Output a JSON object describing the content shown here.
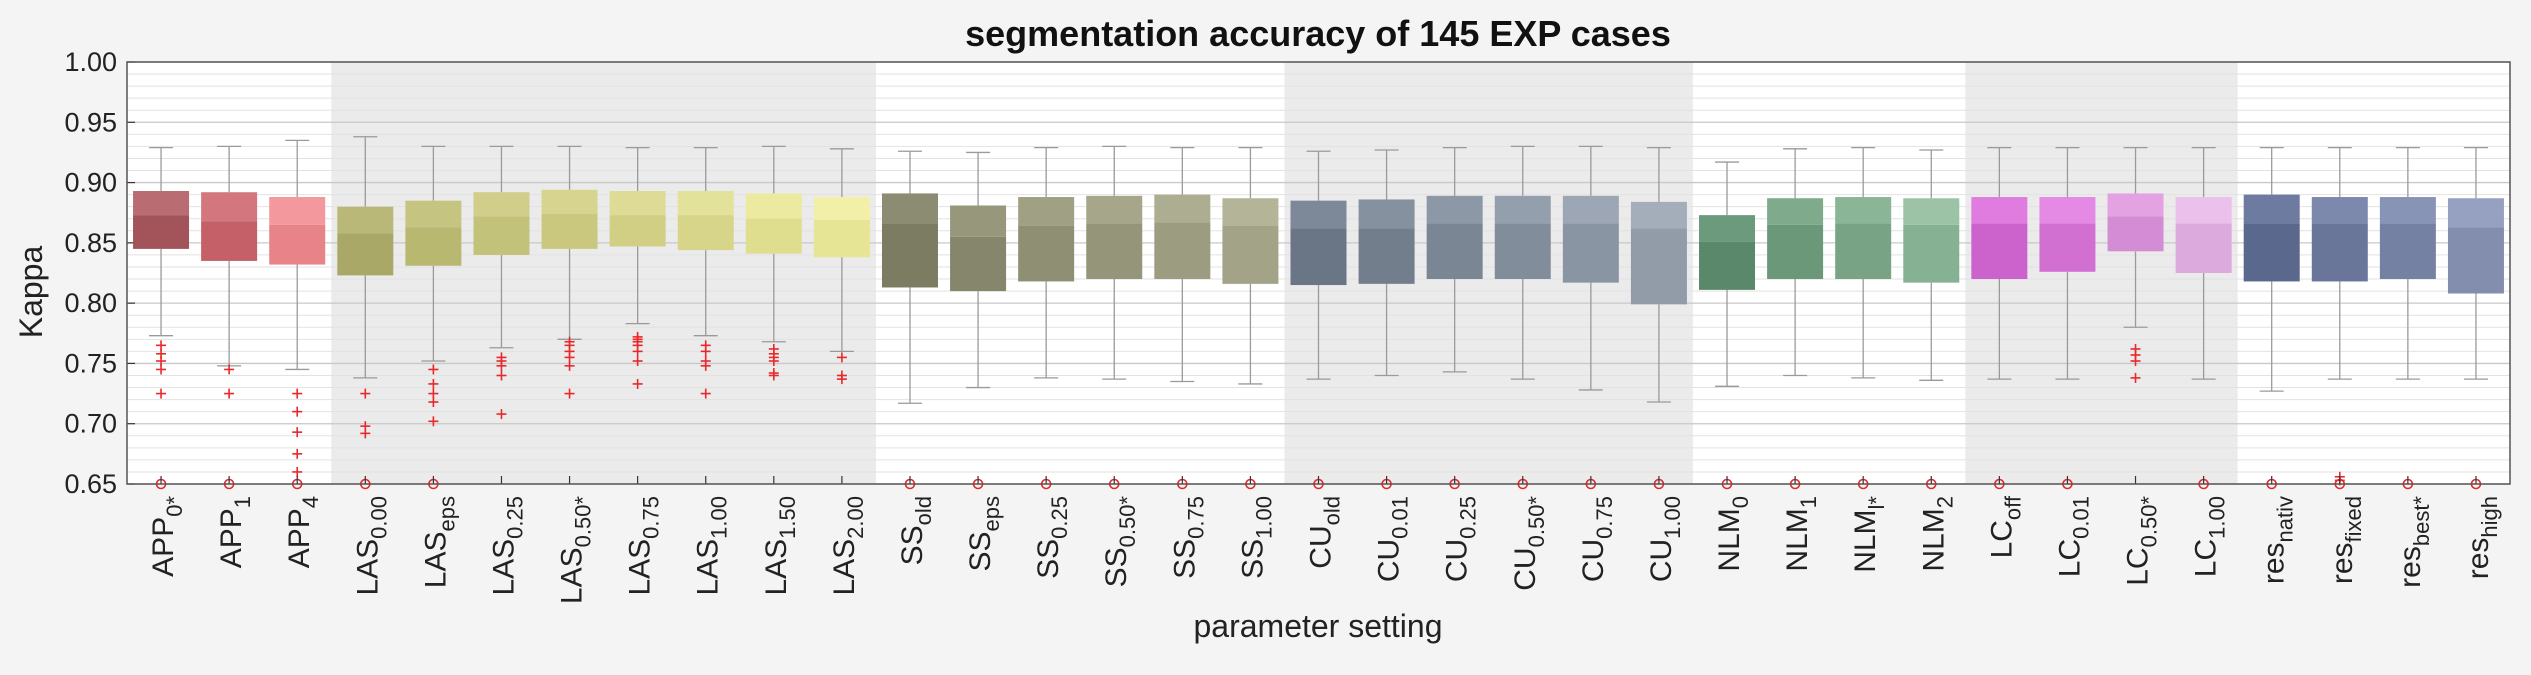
{
  "chart_data": {
    "type": "box",
    "title": "segmentation accuracy of 145 EXP cases",
    "xlabel": "parameter setting",
    "ylabel": "Kappa",
    "ylim": [
      0.65,
      1.0
    ],
    "yticks": [
      "0.65",
      "0.70",
      "0.75",
      "0.80",
      "0.85",
      "0.90",
      "0.95",
      "1.00"
    ],
    "grid": true,
    "outlier_color": "#e8282b",
    "group_shading": [
      {
        "from": 3,
        "to": 10,
        "color": "#ebebeb"
      },
      {
        "from": 17,
        "to": 22,
        "color": "#ebebeb"
      },
      {
        "from": 27,
        "to": 30,
        "color": "#ebebeb"
      }
    ],
    "categories": [
      {
        "base": "APP",
        "sub": "0*",
        "q1": 0.845,
        "median": 0.873,
        "q3": 0.893,
        "whisker_low": 0.773,
        "whisker_high": 0.929,
        "color_upper": "#b96c72",
        "color_lower": "#a3535a",
        "outliers": [
          0.725,
          0.745,
          0.752,
          0.758,
          0.765
        ],
        "marker_at_axis": true
      },
      {
        "base": "APP",
        "sub": "1",
        "q1": 0.835,
        "median": 0.868,
        "q3": 0.892,
        "whisker_low": 0.748,
        "whisker_high": 0.93,
        "color_upper": "#d4767e",
        "color_lower": "#c66068",
        "outliers": [
          0.725,
          0.745
        ],
        "marker_at_axis": true
      },
      {
        "base": "APP",
        "sub": "4",
        "q1": 0.832,
        "median": 0.865,
        "q3": 0.888,
        "whisker_low": 0.745,
        "whisker_high": 0.935,
        "color_upper": "#f3999d",
        "color_lower": "#e9838a",
        "outliers": [
          0.66,
          0.675,
          0.693,
          0.71,
          0.725
        ],
        "marker_at_axis": true
      },
      {
        "base": "LAS",
        "sub": "0.00",
        "q1": 0.823,
        "median": 0.858,
        "q3": 0.88,
        "whisker_low": 0.738,
        "whisker_high": 0.938,
        "color_upper": "#b9b878",
        "color_lower": "#a9a866",
        "outliers": [
          0.692,
          0.698,
          0.725
        ],
        "marker_at_axis": true
      },
      {
        "base": "LAS",
        "sub": "eps",
        "q1": 0.831,
        "median": 0.863,
        "q3": 0.885,
        "whisker_low": 0.752,
        "whisker_high": 0.93,
        "color_upper": "#c5c480",
        "color_lower": "#b8b870",
        "outliers": [
          0.702,
          0.718,
          0.725,
          0.733,
          0.745
        ],
        "marker_at_axis": true
      },
      {
        "base": "LAS",
        "sub": "0.25",
        "q1": 0.84,
        "median": 0.872,
        "q3": 0.892,
        "whisker_low": 0.763,
        "whisker_high": 0.93,
        "color_upper": "#d0ce8a",
        "color_lower": "#c3c27a",
        "outliers": [
          0.708,
          0.74,
          0.748,
          0.752,
          0.755
        ],
        "marker_at_axis": false
      },
      {
        "base": "LAS",
        "sub": "0.50*",
        "q1": 0.845,
        "median": 0.874,
        "q3": 0.894,
        "whisker_low": 0.77,
        "whisker_high": 0.93,
        "color_upper": "#d6d48f",
        "color_lower": "#c9c87e",
        "outliers": [
          0.725,
          0.748,
          0.755,
          0.76,
          0.765,
          0.768
        ],
        "marker_at_axis": false
      },
      {
        "base": "LAS",
        "sub": "0.75",
        "q1": 0.847,
        "median": 0.873,
        "q3": 0.893,
        "whisker_low": 0.783,
        "whisker_high": 0.929,
        "color_upper": "#dddb95",
        "color_lower": "#d0cf84",
        "outliers": [
          0.733,
          0.752,
          0.76,
          0.765,
          0.768,
          0.77,
          0.772
        ],
        "marker_at_axis": false
      },
      {
        "base": "LAS",
        "sub": "1.00",
        "q1": 0.844,
        "median": 0.873,
        "q3": 0.893,
        "whisker_low": 0.773,
        "whisker_high": 0.929,
        "color_upper": "#e3e29a",
        "color_lower": "#d6d589",
        "outliers": [
          0.725,
          0.748,
          0.752,
          0.76,
          0.765
        ],
        "marker_at_axis": false
      },
      {
        "base": "LAS",
        "sub": "1.50",
        "q1": 0.841,
        "median": 0.87,
        "q3": 0.891,
        "whisker_low": 0.768,
        "whisker_high": 0.93,
        "color_upper": "#ebeaa0",
        "color_lower": "#dfde8f",
        "outliers": [
          0.74,
          0.742,
          0.752,
          0.755,
          0.758,
          0.762
        ],
        "marker_at_axis": false
      },
      {
        "base": "LAS",
        "sub": "2.00",
        "q1": 0.838,
        "median": 0.869,
        "q3": 0.888,
        "whisker_low": 0.76,
        "whisker_high": 0.928,
        "color_upper": "#f2f0a8",
        "color_lower": "#e6e595",
        "outliers": [
          0.737,
          0.74,
          0.755
        ],
        "marker_at_axis": false
      },
      {
        "base": "SS",
        "sub": "old",
        "q1": 0.813,
        "median": 0.866,
        "q3": 0.891,
        "whisker_low": 0.717,
        "whisker_high": 0.926,
        "color_upper": "#8c8c72",
        "color_lower": "#7c7c62",
        "outliers": [],
        "marker_at_axis": true
      },
      {
        "base": "SS",
        "sub": "eps",
        "q1": 0.81,
        "median": 0.855,
        "q3": 0.881,
        "whisker_low": 0.73,
        "whisker_high": 0.925,
        "color_upper": "#97977c",
        "color_lower": "#86866c",
        "outliers": [],
        "marker_at_axis": true
      },
      {
        "base": "SS",
        "sub": "0.25",
        "q1": 0.818,
        "median": 0.864,
        "q3": 0.888,
        "whisker_low": 0.738,
        "whisker_high": 0.929,
        "color_upper": "#a0a084",
        "color_lower": "#8f8f74",
        "outliers": [],
        "marker_at_axis": true
      },
      {
        "base": "SS",
        "sub": "0.50*",
        "q1": 0.82,
        "median": 0.866,
        "q3": 0.889,
        "whisker_low": 0.737,
        "whisker_high": 0.93,
        "color_upper": "#a6a68a",
        "color_lower": "#95957a",
        "outliers": [],
        "marker_at_axis": true
      },
      {
        "base": "SS",
        "sub": "0.75",
        "q1": 0.82,
        "median": 0.867,
        "q3": 0.89,
        "whisker_low": 0.735,
        "whisker_high": 0.929,
        "color_upper": "#adad91",
        "color_lower": "#9c9c80",
        "outliers": [],
        "marker_at_axis": true
      },
      {
        "base": "SS",
        "sub": "1.00",
        "q1": 0.816,
        "median": 0.864,
        "q3": 0.887,
        "whisker_low": 0.733,
        "whisker_high": 0.929,
        "color_upper": "#b4b498",
        "color_lower": "#a3a387",
        "outliers": [],
        "marker_at_axis": true
      },
      {
        "base": "CU",
        "sub": "old",
        "q1": 0.815,
        "median": 0.862,
        "q3": 0.885,
        "whisker_low": 0.737,
        "whisker_high": 0.926,
        "color_upper": "#7d8898",
        "color_lower": "#6a7686",
        "outliers": [],
        "marker_at_axis": true
      },
      {
        "base": "CU",
        "sub": "0.01",
        "q1": 0.816,
        "median": 0.862,
        "q3": 0.886,
        "whisker_low": 0.74,
        "whisker_high": 0.927,
        "color_upper": "#86919f",
        "color_lower": "#737e8d",
        "outliers": [],
        "marker_at_axis": true
      },
      {
        "base": "CU",
        "sub": "0.25",
        "q1": 0.82,
        "median": 0.866,
        "q3": 0.889,
        "whisker_low": 0.743,
        "whisker_high": 0.929,
        "color_upper": "#8d98a7",
        "color_lower": "#7b8695",
        "outliers": [],
        "marker_at_axis": true
      },
      {
        "base": "CU",
        "sub": "0.50*",
        "q1": 0.82,
        "median": 0.866,
        "q3": 0.889,
        "whisker_low": 0.737,
        "whisker_high": 0.93,
        "color_upper": "#949fae",
        "color_lower": "#828d9c",
        "outliers": [],
        "marker_at_axis": true
      },
      {
        "base": "CU",
        "sub": "0.75",
        "q1": 0.817,
        "median": 0.866,
        "q3": 0.889,
        "whisker_low": 0.728,
        "whisker_high": 0.93,
        "color_upper": "#9ca6b4",
        "color_lower": "#8a95a3",
        "outliers": [],
        "marker_at_axis": true
      },
      {
        "base": "CU",
        "sub": "1.00",
        "q1": 0.799,
        "median": 0.862,
        "q3": 0.884,
        "whisker_low": 0.718,
        "whisker_high": 0.929,
        "color_upper": "#a4aebb",
        "color_lower": "#929ca9",
        "outliers": [],
        "marker_at_axis": true
      },
      {
        "base": "NLM",
        "sub": "0",
        "q1": 0.811,
        "median": 0.851,
        "q3": 0.873,
        "whisker_low": 0.731,
        "whisker_high": 0.917,
        "color_upper": "#6c9a7c",
        "color_lower": "#5a886a",
        "outliers": [],
        "marker_at_axis": true
      },
      {
        "base": "NLM",
        "sub": "1",
        "q1": 0.82,
        "median": 0.865,
        "q3": 0.887,
        "whisker_low": 0.74,
        "whisker_high": 0.928,
        "color_upper": "#7faa8c",
        "color_lower": "#6c987a",
        "outliers": [],
        "marker_at_axis": true
      },
      {
        "base": "NLM",
        "sub": "l*",
        "q1": 0.82,
        "median": 0.866,
        "q3": 0.888,
        "whisker_low": 0.738,
        "whisker_high": 0.929,
        "color_upper": "#8bb597",
        "color_lower": "#78a385",
        "outliers": [],
        "marker_at_axis": true
      },
      {
        "base": "NLM",
        "sub": "2",
        "q1": 0.817,
        "median": 0.865,
        "q3": 0.887,
        "whisker_low": 0.736,
        "whisker_high": 0.927,
        "color_upper": "#9cc3a6",
        "color_lower": "#87b193",
        "outliers": [],
        "marker_at_axis": true
      },
      {
        "base": "LC",
        "sub": "off",
        "q1": 0.82,
        "median": 0.866,
        "q3": 0.888,
        "whisker_low": 0.737,
        "whisker_high": 0.929,
        "color_upper": "#e07ce0",
        "color_lower": "#cc62cc",
        "outliers": [],
        "marker_at_axis": true
      },
      {
        "base": "LC",
        "sub": "0.01",
        "q1": 0.826,
        "median": 0.866,
        "q3": 0.888,
        "whisker_low": 0.737,
        "whisker_high": 0.929,
        "color_upper": "#e489e4",
        "color_lower": "#d270d2",
        "outliers": [],
        "marker_at_axis": true
      },
      {
        "base": "LC",
        "sub": "0.50*",
        "q1": 0.843,
        "median": 0.872,
        "q3": 0.891,
        "whisker_low": 0.78,
        "whisker_high": 0.929,
        "color_upper": "#e3a3e3",
        "color_lower": "#d48cd4",
        "outliers": [
          0.738,
          0.752,
          0.757,
          0.762
        ],
        "marker_at_axis": false
      },
      {
        "base": "LC",
        "sub": "1.00",
        "q1": 0.825,
        "median": 0.866,
        "q3": 0.888,
        "whisker_low": 0.737,
        "whisker_high": 0.929,
        "color_upper": "#ebc0eb",
        "color_lower": "#dcaadc",
        "outliers": [],
        "marker_at_axis": true
      },
      {
        "base": "res",
        "sub": "nativ",
        "q1": 0.818,
        "median": 0.866,
        "q3": 0.89,
        "whisker_low": 0.727,
        "whisker_high": 0.929,
        "color_upper": "#6e7ba0",
        "color_lower": "#5b688d",
        "outliers": [],
        "marker_at_axis": true
      },
      {
        "base": "res",
        "sub": "fixed",
        "q1": 0.818,
        "median": 0.866,
        "q3": 0.888,
        "whisker_low": 0.737,
        "whisker_high": 0.929,
        "color_upper": "#7d89ac",
        "color_lower": "#6a7699",
        "outliers": [
          0.653,
          0.656
        ],
        "marker_at_axis": true
      },
      {
        "base": "res",
        "sub": "best*",
        "q1": 0.82,
        "median": 0.866,
        "q3": 0.888,
        "whisker_low": 0.737,
        "whisker_high": 0.929,
        "color_upper": "#8894b6",
        "color_lower": "#7581a3",
        "outliers": [],
        "marker_at_axis": true
      },
      {
        "base": "res",
        "sub": "high",
        "q1": 0.808,
        "median": 0.863,
        "q3": 0.887,
        "whisker_low": 0.737,
        "whisker_high": 0.929,
        "color_upper": "#96a1c1",
        "color_lower": "#838eae",
        "outliers": [],
        "marker_at_axis": true
      }
    ]
  }
}
